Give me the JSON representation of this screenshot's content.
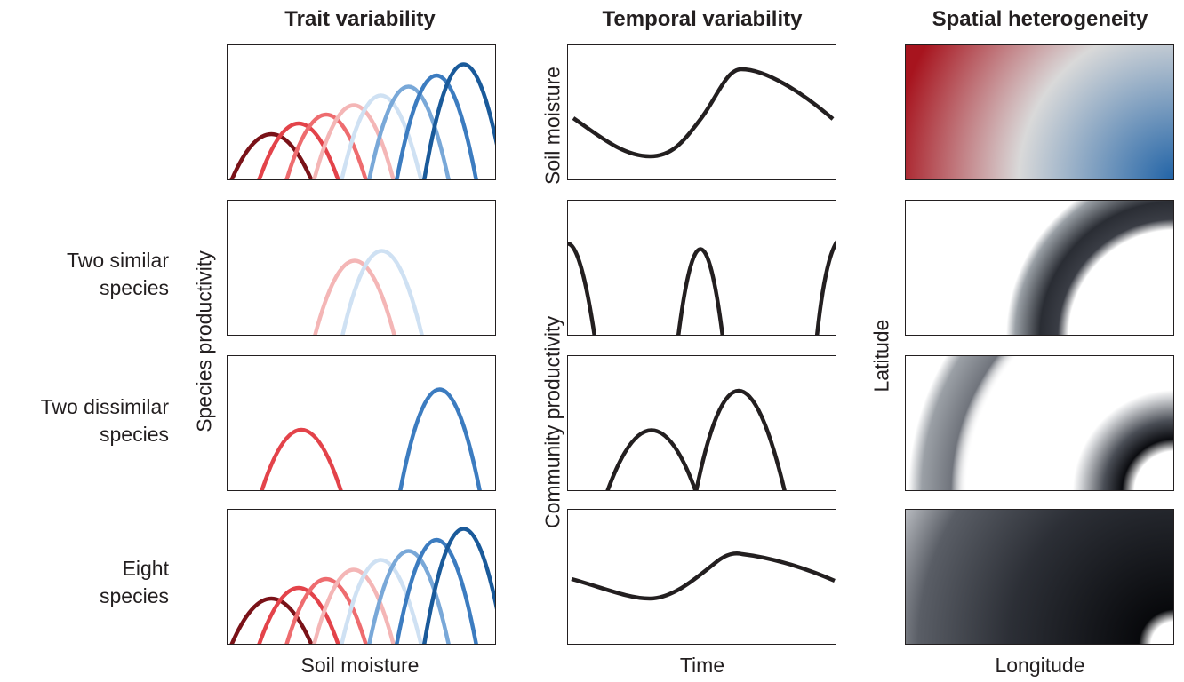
{
  "columns": {
    "trait": "Trait variability",
    "temporal": "Temporal variability",
    "spatial": "Spatial heterogeneity"
  },
  "rows": {
    "two_similar": "Two similar\nspecies",
    "two_dissimilar": "Two dissimilar\nspecies",
    "eight": "Eight\nspecies"
  },
  "axes": {
    "trait_x": "Soil moisture",
    "trait_y": "Species productivity",
    "temporal_x": "Time",
    "temporal_top_y": "Soil moisture",
    "temporal_y": "Community productivity",
    "spatial_x": "Longitude",
    "spatial_y": "Latitude"
  },
  "colors": {
    "species": [
      "#7a1218",
      "#e3434a",
      "#ee6c6f",
      "#f4b6b6",
      "#cfe1f3",
      "#79a8d8",
      "#3c7cc0",
      "#1a5a9a"
    ],
    "line": "#231f20",
    "gradient_red": "#a7141e",
    "gradient_mid": "#d9d9d9",
    "gradient_blue": "#1f62a6"
  }
}
